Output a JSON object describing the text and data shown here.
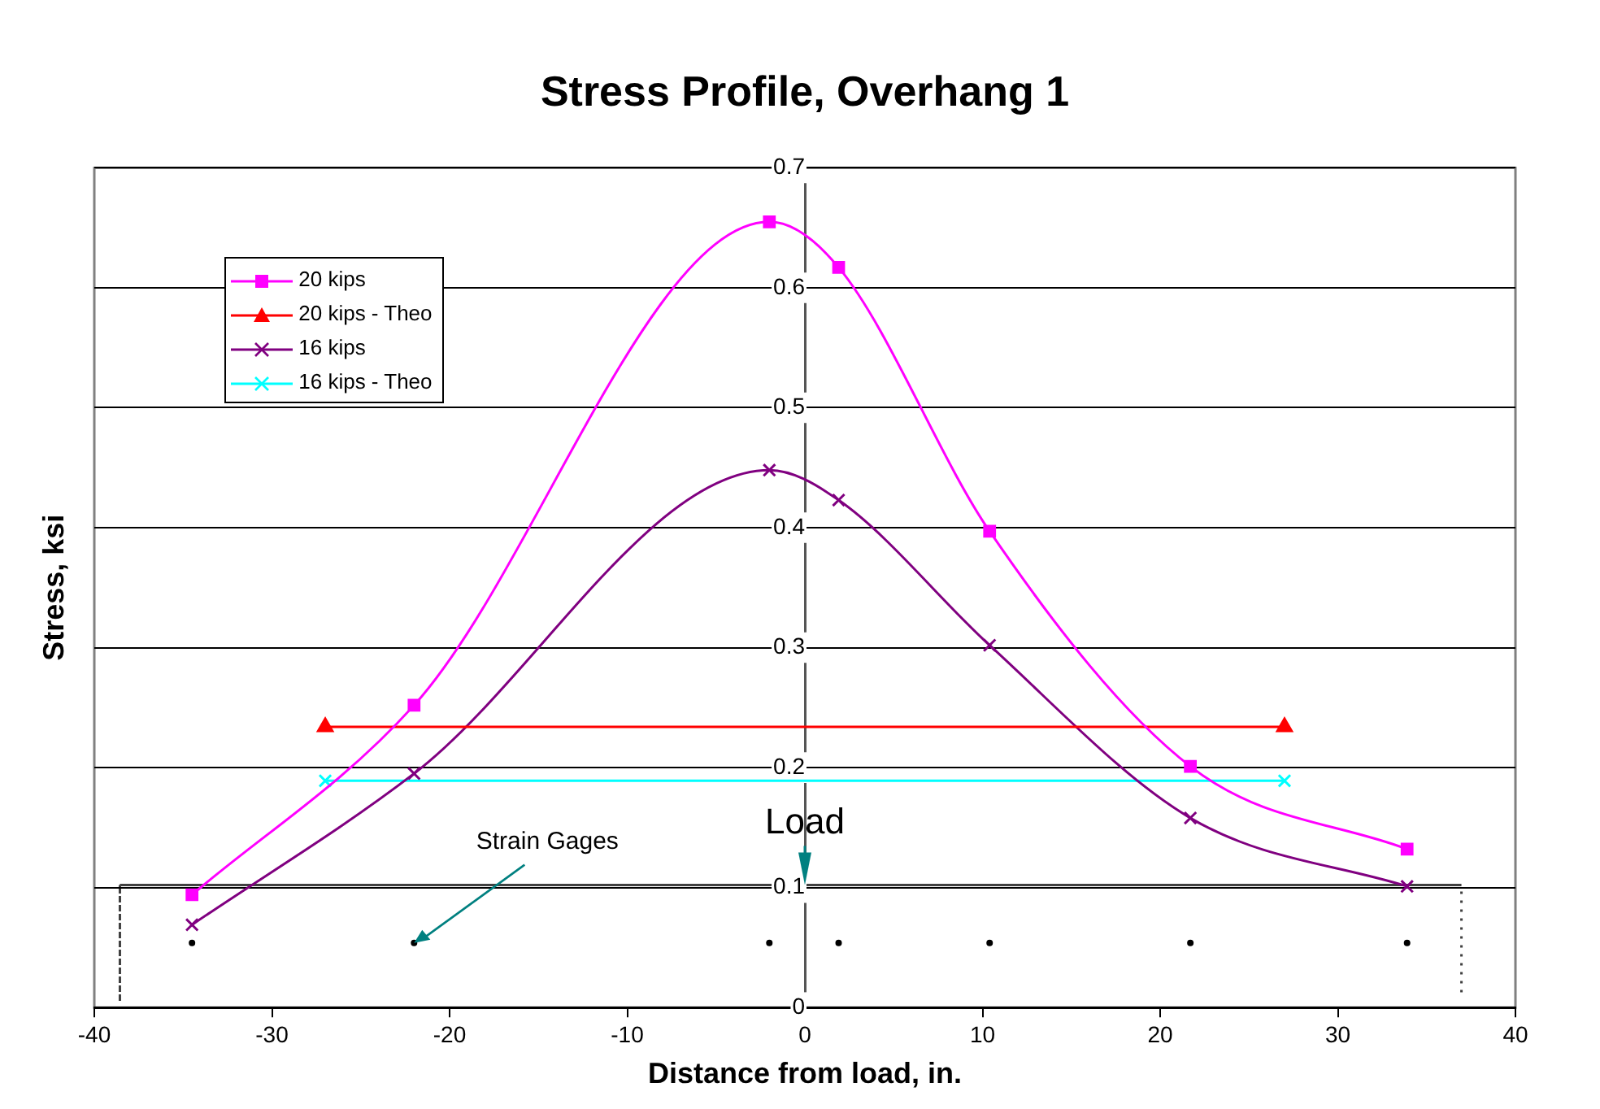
{
  "chart_data": {
    "type": "line",
    "title": "Stress Profile, Overhang 1",
    "xlabel": "Distance from load, in.",
    "ylabel": "Stress, ksi",
    "xlim": [
      -40,
      40
    ],
    "xticks": [
      -40,
      -30,
      -20,
      -10,
      0,
      10,
      20,
      30,
      40
    ],
    "ylim": [
      0,
      0.7
    ],
    "yticks": [
      0,
      0.1,
      0.2,
      0.3,
      0.4,
      0.5,
      0.6,
      0.7
    ],
    "grid": "y",
    "legend": "top left",
    "line_style": "solid",
    "series": [
      {
        "name": "20 kips",
        "color": "#ff00ff",
        "marker": "square",
        "x": [
          -34.5,
          -22,
          -2,
          1.9,
          10.4,
          21.7,
          33.9
        ],
        "values": [
          0.094,
          0.252,
          0.655,
          0.617,
          0.397,
          0.201,
          0.132
        ]
      },
      {
        "name": "20 kips - Theo",
        "color": "#ff0000",
        "marker": "triangle",
        "x": [
          -27,
          27
        ],
        "values": [
          0.234,
          0.234
        ]
      },
      {
        "name": "16 kips",
        "color": "#800080",
        "marker": "cross",
        "x": [
          -34.5,
          -22,
          -2,
          1.9,
          10.4,
          21.7,
          33.9
        ],
        "values": [
          0.069,
          0.195,
          0.448,
          0.423,
          0.302,
          0.158,
          0.101
        ]
      },
      {
        "name": "16 kips - Theo",
        "color": "#00ffff",
        "marker": "cross",
        "x": [
          -27,
          27
        ],
        "values": [
          0.189,
          0.189
        ]
      }
    ],
    "annotations": [
      "Load",
      "Strain Gages"
    ]
  }
}
